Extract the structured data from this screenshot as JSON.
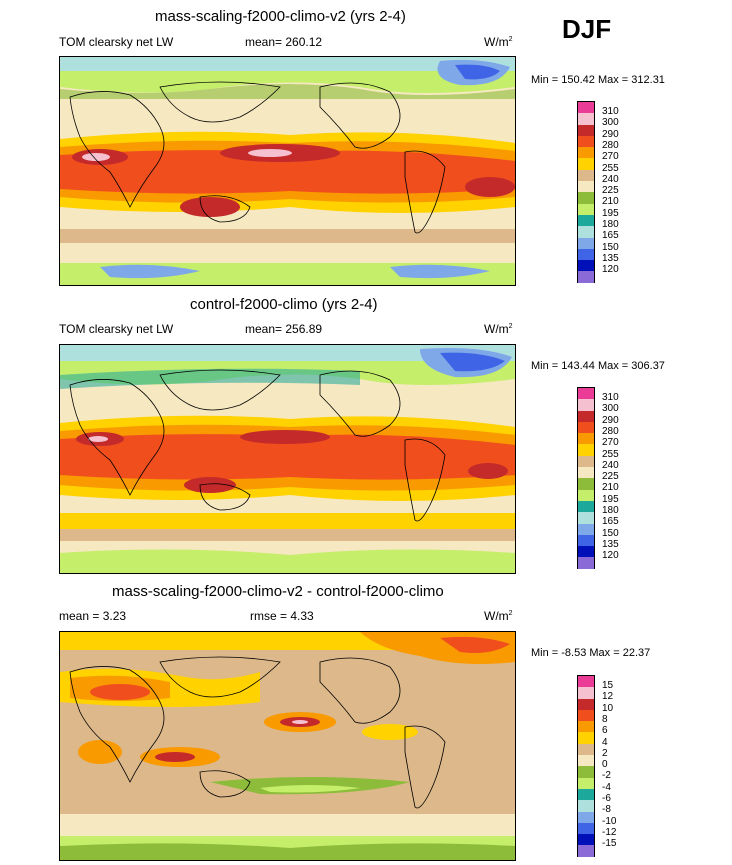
{
  "season": "DJF",
  "units": "W/m",
  "units_exp": "2",
  "panels": [
    {
      "title": "mass-scaling-f2000-climo-v2 (yrs 2-4)",
      "left_label": "TOM clearsky net LW",
      "center_label": "mean= 260.12",
      "minmax": "Min = 150.42 Max = 312.31",
      "legend": [
        "310",
        "300",
        "290",
        "280",
        "270",
        "255",
        "240",
        "225",
        "210",
        "195",
        "180",
        "165",
        "150",
        "135",
        "120"
      ]
    },
    {
      "title": "control-f2000-climo (yrs 2-4)",
      "left_label": "TOM clearsky net LW",
      "center_label": "mean= 256.89",
      "minmax": "Min = 143.44 Max = 306.37",
      "legend": [
        "310",
        "300",
        "290",
        "280",
        "270",
        "255",
        "240",
        "225",
        "210",
        "195",
        "180",
        "165",
        "150",
        "135",
        "120"
      ]
    },
    {
      "title": "mass-scaling-f2000-climo-v2 - control-f2000-climo",
      "left_label": "mean =   3.23",
      "center_label": "rmse =   4.33",
      "minmax": "Min =  -8.53 Max =  22.37",
      "legend": [
        "15",
        "12",
        "10",
        "8",
        "6",
        "4",
        "2",
        "0",
        "-2",
        "-4",
        "-6",
        "-8",
        "-10",
        "-12",
        "-15"
      ]
    }
  ],
  "colors": {
    "field": [
      "#ea3c96",
      "#f5c0cf",
      "#c52a2a",
      "#f14e1e",
      "#f99a00",
      "#ffd200",
      "#dcb88a",
      "#f6e8c0",
      "#8dbc3b",
      "#c5ee6b",
      "#1da89c",
      "#aee0de",
      "#7fa8e8",
      "#3f64e6",
      "#0010b8",
      "#8a6ad6"
    ],
    "diff": [
      "#ea3c96",
      "#f5c0cf",
      "#c52a2a",
      "#f14e1e",
      "#f99a00",
      "#ffd200",
      "#dcb88a",
      "#f6e8c0",
      "#8dbc3b",
      "#c5ee6b",
      "#1da89c",
      "#aee0de",
      "#7fa8e8",
      "#3f64e6",
      "#0010b8",
      "#8a6ad6"
    ]
  }
}
